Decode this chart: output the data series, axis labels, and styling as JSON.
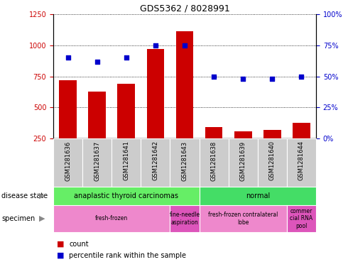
{
  "title": "GDS5362 / 8028991",
  "samples": [
    "GSM1281636",
    "GSM1281637",
    "GSM1281641",
    "GSM1281642",
    "GSM1281643",
    "GSM1281638",
    "GSM1281639",
    "GSM1281640",
    "GSM1281644"
  ],
  "counts": [
    720,
    630,
    690,
    970,
    1110,
    340,
    310,
    320,
    375
  ],
  "percentiles": [
    65,
    62,
    65,
    75,
    75,
    50,
    48,
    48,
    50
  ],
  "ylim_left": [
    250,
    1250
  ],
  "ylim_right": [
    0,
    100
  ],
  "yticks_left": [
    250,
    500,
    750,
    1000,
    1250
  ],
  "yticks_right": [
    0,
    25,
    50,
    75,
    100
  ],
  "bar_color": "#cc0000",
  "dot_color": "#0000cc",
  "disease_state_groups": [
    {
      "label": "anaplastic thyroid carcinomas",
      "start": 0,
      "end": 5,
      "color": "#66ee66"
    },
    {
      "label": "normal",
      "start": 5,
      "end": 9,
      "color": "#44dd66"
    }
  ],
  "specimen_groups": [
    {
      "label": "fresh-frozen",
      "start": 0,
      "end": 4,
      "color": "#ee88cc"
    },
    {
      "label": "fine-needle\naspiration",
      "start": 4,
      "end": 5,
      "color": "#dd55bb"
    },
    {
      "label": "fresh-frozen contralateral\nlobe",
      "start": 5,
      "end": 8,
      "color": "#ee88cc"
    },
    {
      "label": "commer\ncial RNA\npool",
      "start": 8,
      "end": 9,
      "color": "#dd55bb"
    }
  ],
  "sample_box_color": "#cccccc",
  "background_color": "#ffffff",
  "tick_color_left": "#cc0000",
  "tick_color_right": "#0000cc",
  "grid_linestyle": "dotted",
  "bar_width": 0.6,
  "xlim": [
    -0.5,
    8.5
  ],
  "dot_size": 25,
  "title_fontsize": 9,
  "axis_fontsize": 7,
  "sample_fontsize": 6,
  "annotation_fontsize": 7,
  "legend_fontsize": 7
}
